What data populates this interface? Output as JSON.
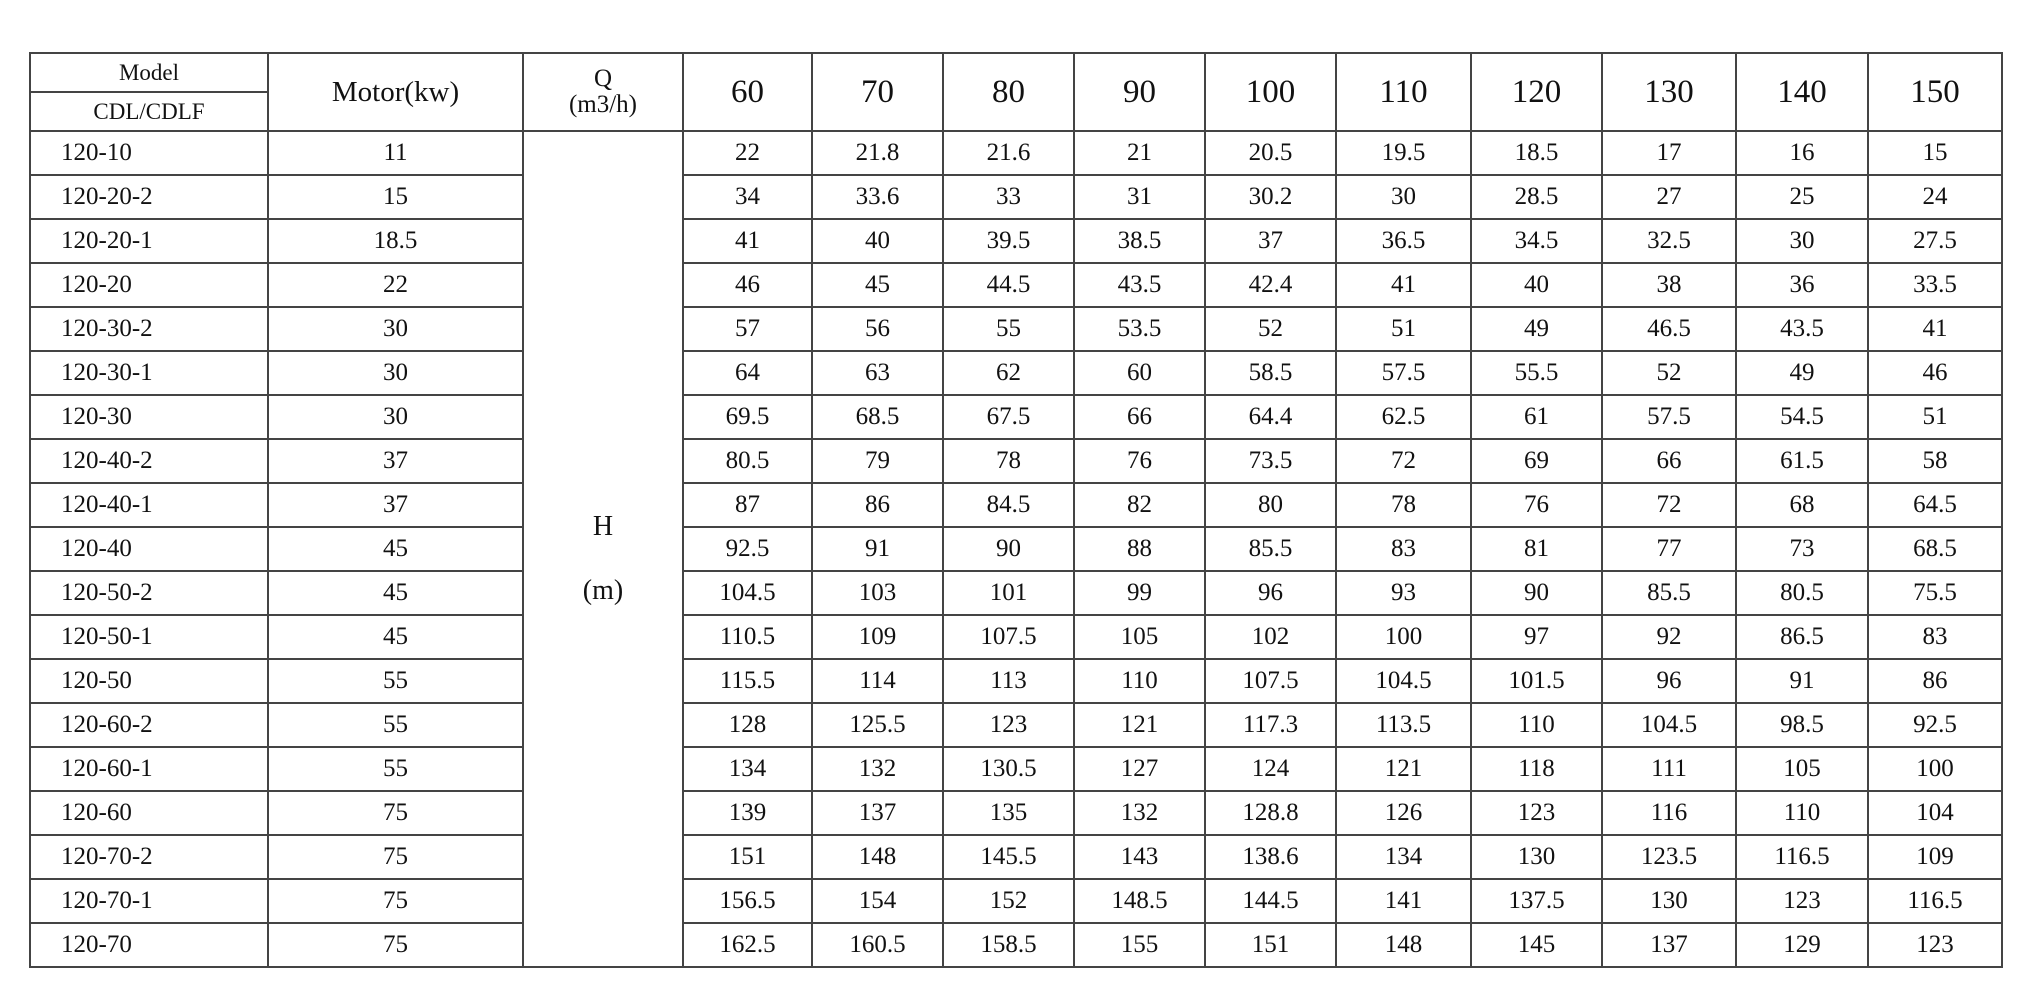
{
  "header": {
    "model_label": "Model",
    "series_label": "CDL/CDLF",
    "motor_label": "Motor(kw)",
    "q_label": "Q",
    "q_unit": "(m3/h)",
    "h_label": "H",
    "h_unit": "(m)",
    "flows": [
      "60",
      "70",
      "80",
      "90",
      "100",
      "110",
      "120",
      "130",
      "140",
      "150"
    ]
  },
  "rows": [
    {
      "model": "120-10",
      "motor": "11",
      "h": [
        "22",
        "21.8",
        "21.6",
        "21",
        "20.5",
        "19.5",
        "18.5",
        "17",
        "16",
        "15"
      ]
    },
    {
      "model": "120-20-2",
      "motor": "15",
      "h": [
        "34",
        "33.6",
        "33",
        "31",
        "30.2",
        "30",
        "28.5",
        "27",
        "25",
        "24"
      ]
    },
    {
      "model": "120-20-1",
      "motor": "18.5",
      "h": [
        "41",
        "40",
        "39.5",
        "38.5",
        "37",
        "36.5",
        "34.5",
        "32.5",
        "30",
        "27.5"
      ]
    },
    {
      "model": "120-20",
      "motor": "22",
      "h": [
        "46",
        "45",
        "44.5",
        "43.5",
        "42.4",
        "41",
        "40",
        "38",
        "36",
        "33.5"
      ]
    },
    {
      "model": "120-30-2",
      "motor": "30",
      "h": [
        "57",
        "56",
        "55",
        "53.5",
        "52",
        "51",
        "49",
        "46.5",
        "43.5",
        "41"
      ]
    },
    {
      "model": "120-30-1",
      "motor": "30",
      "h": [
        "64",
        "63",
        "62",
        "60",
        "58.5",
        "57.5",
        "55.5",
        "52",
        "49",
        "46"
      ]
    },
    {
      "model": "120-30",
      "motor": "30",
      "h": [
        "69.5",
        "68.5",
        "67.5",
        "66",
        "64.4",
        "62.5",
        "61",
        "57.5",
        "54.5",
        "51"
      ]
    },
    {
      "model": "120-40-2",
      "motor": "37",
      "h": [
        "80.5",
        "79",
        "78",
        "76",
        "73.5",
        "72",
        "69",
        "66",
        "61.5",
        "58"
      ]
    },
    {
      "model": "120-40-1",
      "motor": "37",
      "h": [
        "87",
        "86",
        "84.5",
        "82",
        "80",
        "78",
        "76",
        "72",
        "68",
        "64.5"
      ]
    },
    {
      "model": "120-40",
      "motor": "45",
      "h": [
        "92.5",
        "91",
        "90",
        "88",
        "85.5",
        "83",
        "81",
        "77",
        "73",
        "68.5"
      ]
    },
    {
      "model": "120-50-2",
      "motor": "45",
      "h": [
        "104.5",
        "103",
        "101",
        "99",
        "96",
        "93",
        "90",
        "85.5",
        "80.5",
        "75.5"
      ]
    },
    {
      "model": "120-50-1",
      "motor": "45",
      "h": [
        "110.5",
        "109",
        "107.5",
        "105",
        "102",
        "100",
        "97",
        "92",
        "86.5",
        "83"
      ]
    },
    {
      "model": "120-50",
      "motor": "55",
      "h": [
        "115.5",
        "114",
        "113",
        "110",
        "107.5",
        "104.5",
        "101.5",
        "96",
        "91",
        "86"
      ]
    },
    {
      "model": "120-60-2",
      "motor": "55",
      "h": [
        "128",
        "125.5",
        "123",
        "121",
        "117.3",
        "113.5",
        "110",
        "104.5",
        "98.5",
        "92.5"
      ]
    },
    {
      "model": "120-60-1",
      "motor": "55",
      "h": [
        "134",
        "132",
        "130.5",
        "127",
        "124",
        "121",
        "118",
        "111",
        "105",
        "100"
      ]
    },
    {
      "model": "120-60",
      "motor": "75",
      "h": [
        "139",
        "137",
        "135",
        "132",
        "128.8",
        "126",
        "123",
        "116",
        "110",
        "104"
      ]
    },
    {
      "model": "120-70-2",
      "motor": "75",
      "h": [
        "151",
        "148",
        "145.5",
        "143",
        "138.6",
        "134",
        "130",
        "123.5",
        "116.5",
        "109"
      ]
    },
    {
      "model": "120-70-1",
      "motor": "75",
      "h": [
        "156.5",
        "154",
        "152",
        "148.5",
        "144.5",
        "141",
        "137.5",
        "130",
        "123",
        "116.5"
      ]
    },
    {
      "model": "120-70",
      "motor": "75",
      "h": [
        "162.5",
        "160.5",
        "158.5",
        "155",
        "151",
        "148",
        "145",
        "137",
        "129",
        "123"
      ]
    }
  ]
}
